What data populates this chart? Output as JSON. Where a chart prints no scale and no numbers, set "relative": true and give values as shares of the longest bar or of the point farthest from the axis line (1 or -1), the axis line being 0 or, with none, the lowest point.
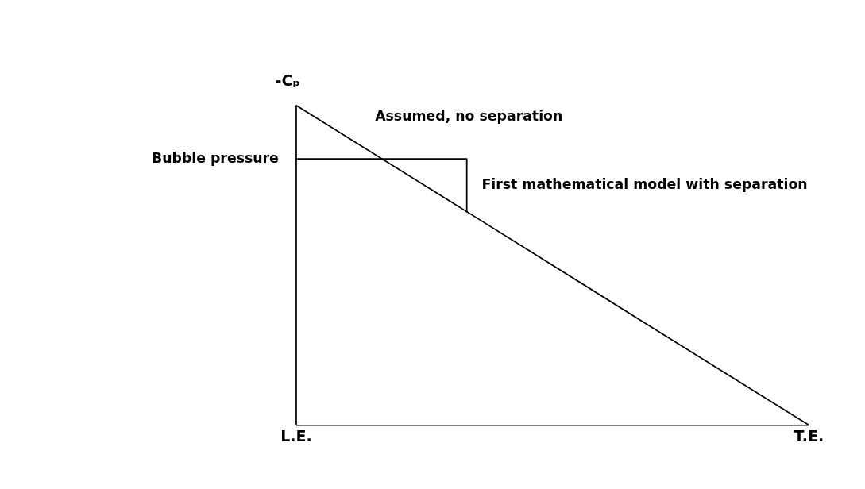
{
  "chart_data": {
    "type": "line",
    "relative": true,
    "ylabel": "-Cₚ",
    "marker": "none",
    "line_style": "solid",
    "categories": [
      "L.E.",
      null,
      null,
      "T.E."
    ],
    "series": [
      {
        "color": "#000000",
        "values": [
          1,
          0.667,
          0.333,
          0
        ]
      },
      {
        "type": "step",
        "color": "#000000",
        "values": [
          0.832,
          0.664,
          null,
          null
        ]
      }
    ],
    "annotations": [
      "Assumed, no separation",
      "Bubble pressure",
      "First mathematical model with separation"
    ]
  }
}
